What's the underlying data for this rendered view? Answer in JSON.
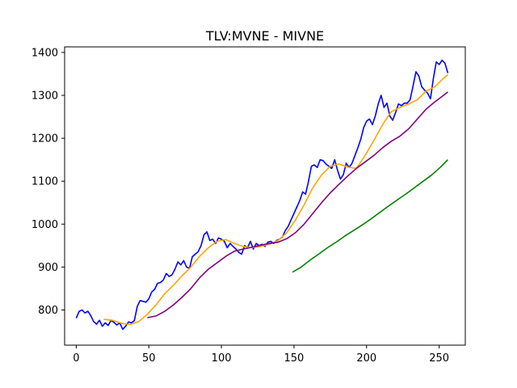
{
  "chart_data": {
    "type": "line",
    "title": "TLV:MVNE - MIVNE",
    "xlabel": "",
    "ylabel": "",
    "xlim": [
      -8,
      268
    ],
    "ylim": [
      718,
      1413
    ],
    "xticks": [
      0,
      50,
      100,
      150,
      200,
      250
    ],
    "yticks": [
      800,
      900,
      1000,
      1100,
      1200,
      1300,
      1400
    ],
    "grid": false,
    "legend": "none",
    "series": [
      {
        "color": "#0000ff",
        "points": [
          [
            0,
            781
          ],
          [
            2,
            797
          ],
          [
            4,
            800
          ],
          [
            6,
            793
          ],
          [
            8,
            797
          ],
          [
            10,
            787
          ],
          [
            12,
            773
          ],
          [
            14,
            767
          ],
          [
            16,
            776
          ],
          [
            18,
            762
          ],
          [
            20,
            770
          ],
          [
            22,
            764
          ],
          [
            24,
            776
          ],
          [
            26,
            771
          ],
          [
            28,
            765
          ],
          [
            30,
            770
          ],
          [
            32,
            755
          ],
          [
            34,
            762
          ],
          [
            36,
            772
          ],
          [
            38,
            770
          ],
          [
            40,
            775
          ],
          [
            42,
            808
          ],
          [
            44,
            822
          ],
          [
            46,
            820
          ],
          [
            48,
            818
          ],
          [
            50,
            826
          ],
          [
            52,
            842
          ],
          [
            54,
            848
          ],
          [
            56,
            862
          ],
          [
            58,
            864
          ],
          [
            60,
            870
          ],
          [
            62,
            885
          ],
          [
            64,
            878
          ],
          [
            66,
            882
          ],
          [
            68,
            895
          ],
          [
            70,
            912
          ],
          [
            72,
            905
          ],
          [
            74,
            915
          ],
          [
            76,
            900
          ],
          [
            78,
            897
          ],
          [
            80,
            924
          ],
          [
            82,
            930
          ],
          [
            84,
            936
          ],
          [
            86,
            950
          ],
          [
            88,
            975
          ],
          [
            90,
            982
          ],
          [
            92,
            962
          ],
          [
            94,
            965
          ],
          [
            96,
            955
          ],
          [
            98,
            968
          ],
          [
            100,
            965
          ],
          [
            102,
            960
          ],
          [
            104,
            945
          ],
          [
            106,
            955
          ],
          [
            108,
            948
          ],
          [
            110,
            942
          ],
          [
            112,
            934
          ],
          [
            114,
            930
          ],
          [
            116,
            950
          ],
          [
            118,
            945
          ],
          [
            120,
            960
          ],
          [
            122,
            942
          ],
          [
            124,
            955
          ],
          [
            126,
            950
          ],
          [
            128,
            953
          ],
          [
            130,
            948
          ],
          [
            132,
            958
          ],
          [
            134,
            960
          ],
          [
            136,
            955
          ],
          [
            138,
            962
          ],
          [
            140,
            965
          ],
          [
            142,
            970
          ],
          [
            144,
            985
          ],
          [
            146,
            995
          ],
          [
            148,
            1010
          ],
          [
            150,
            1025
          ],
          [
            152,
            1040
          ],
          [
            154,
            1055
          ],
          [
            156,
            1075
          ],
          [
            158,
            1070
          ],
          [
            160,
            1100
          ],
          [
            162,
            1135
          ],
          [
            164,
            1138
          ],
          [
            166,
            1132
          ],
          [
            168,
            1150
          ],
          [
            170,
            1148
          ],
          [
            172,
            1140
          ],
          [
            174,
            1135
          ],
          [
            176,
            1130
          ],
          [
            178,
            1150
          ],
          [
            180,
            1125
          ],
          [
            182,
            1105
          ],
          [
            184,
            1115
          ],
          [
            186,
            1142
          ],
          [
            188,
            1132
          ],
          [
            190,
            1142
          ],
          [
            192,
            1160
          ],
          [
            194,
            1178
          ],
          [
            196,
            1198
          ],
          [
            198,
            1225
          ],
          [
            200,
            1240
          ],
          [
            202,
            1245
          ],
          [
            204,
            1232
          ],
          [
            206,
            1252
          ],
          [
            208,
            1280
          ],
          [
            210,
            1300
          ],
          [
            212,
            1272
          ],
          [
            214,
            1282
          ],
          [
            216,
            1252
          ],
          [
            218,
            1242
          ],
          [
            220,
            1260
          ],
          [
            222,
            1280
          ],
          [
            224,
            1276
          ],
          [
            226,
            1282
          ],
          [
            228,
            1282
          ],
          [
            230,
            1290
          ],
          [
            232,
            1322
          ],
          [
            234,
            1355
          ],
          [
            236,
            1345
          ],
          [
            238,
            1320
          ],
          [
            240,
            1312
          ],
          [
            242,
            1305
          ],
          [
            244,
            1292
          ],
          [
            246,
            1340
          ],
          [
            248,
            1378
          ],
          [
            250,
            1372
          ],
          [
            252,
            1382
          ],
          [
            254,
            1375
          ],
          [
            256,
            1352
          ]
        ]
      },
      {
        "color": "#ffa500",
        "points": [
          [
            19,
            778
          ],
          [
            25,
            776
          ],
          [
            31,
            769
          ],
          [
            37,
            766
          ],
          [
            43,
            773
          ],
          [
            49,
            790
          ],
          [
            55,
            812
          ],
          [
            61,
            838
          ],
          [
            67,
            858
          ],
          [
            73,
            880
          ],
          [
            79,
            900
          ],
          [
            85,
            925
          ],
          [
            91,
            945
          ],
          [
            97,
            960
          ],
          [
            103,
            964
          ],
          [
            109,
            955
          ],
          [
            115,
            948
          ],
          [
            121,
            945
          ],
          [
            127,
            948
          ],
          [
            133,
            953
          ],
          [
            139,
            962
          ],
          [
            145,
            980
          ],
          [
            151,
            1010
          ],
          [
            157,
            1045
          ],
          [
            163,
            1085
          ],
          [
            169,
            1115
          ],
          [
            175,
            1135
          ],
          [
            181,
            1140
          ],
          [
            187,
            1133
          ],
          [
            193,
            1130
          ],
          [
            199,
            1160
          ],
          [
            205,
            1195
          ],
          [
            211,
            1232
          ],
          [
            217,
            1262
          ],
          [
            223,
            1272
          ],
          [
            229,
            1280
          ],
          [
            235,
            1290
          ],
          [
            241,
            1310
          ],
          [
            247,
            1320
          ],
          [
            253,
            1340
          ],
          [
            256,
            1348
          ]
        ]
      },
      {
        "color": "#800080",
        "points": [
          [
            49,
            782
          ],
          [
            55,
            786
          ],
          [
            61,
            797
          ],
          [
            67,
            812
          ],
          [
            73,
            830
          ],
          [
            79,
            850
          ],
          [
            85,
            875
          ],
          [
            91,
            895
          ],
          [
            97,
            910
          ],
          [
            103,
            925
          ],
          [
            109,
            937
          ],
          [
            115,
            942
          ],
          [
            121,
            946
          ],
          [
            127,
            951
          ],
          [
            133,
            955
          ],
          [
            139,
            958
          ],
          [
            145,
            966
          ],
          [
            151,
            980
          ],
          [
            157,
            1000
          ],
          [
            163,
            1025
          ],
          [
            169,
            1050
          ],
          [
            175,
            1073
          ],
          [
            181,
            1093
          ],
          [
            187,
            1112
          ],
          [
            193,
            1130
          ],
          [
            199,
            1145
          ],
          [
            205,
            1160
          ],
          [
            211,
            1178
          ],
          [
            217,
            1193
          ],
          [
            223,
            1205
          ],
          [
            229,
            1222
          ],
          [
            235,
            1245
          ],
          [
            241,
            1268
          ],
          [
            247,
            1285
          ],
          [
            253,
            1300
          ],
          [
            256,
            1308
          ]
        ]
      },
      {
        "color": "#008000",
        "points": [
          [
            149,
            888
          ],
          [
            155,
            900
          ],
          [
            161,
            916
          ],
          [
            167,
            930
          ],
          [
            173,
            945
          ],
          [
            179,
            958
          ],
          [
            185,
            972
          ],
          [
            191,
            985
          ],
          [
            197,
            998
          ],
          [
            203,
            1012
          ],
          [
            209,
            1027
          ],
          [
            215,
            1042
          ],
          [
            221,
            1056
          ],
          [
            227,
            1070
          ],
          [
            233,
            1085
          ],
          [
            239,
            1100
          ],
          [
            245,
            1115
          ],
          [
            251,
            1133
          ],
          [
            256,
            1150
          ]
        ]
      }
    ]
  }
}
